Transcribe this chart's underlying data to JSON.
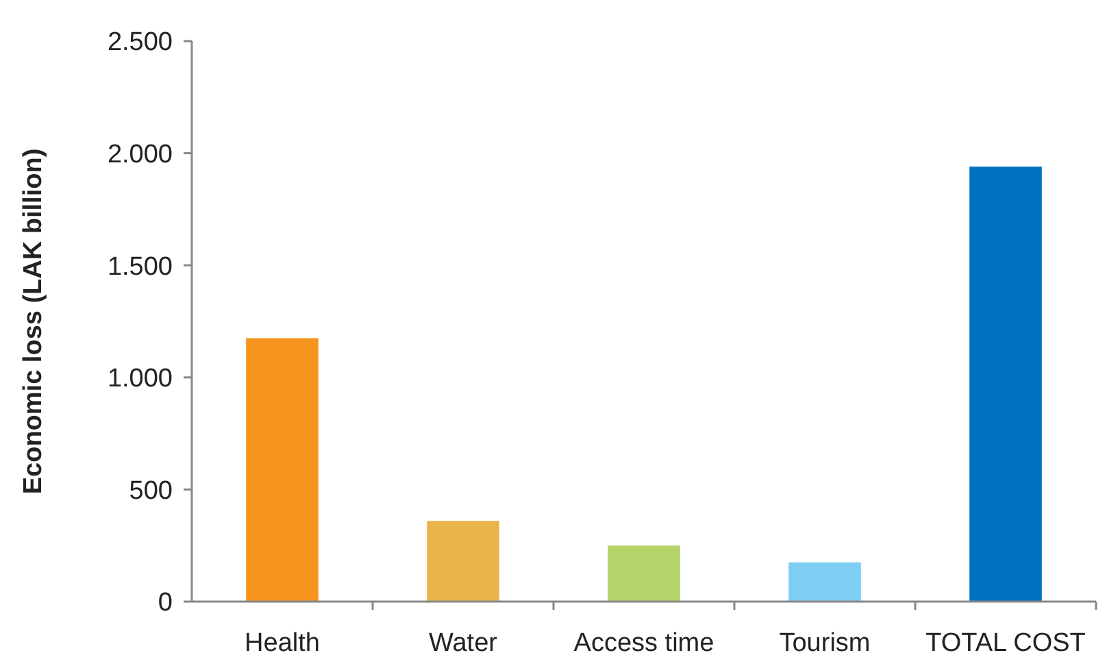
{
  "chart_data": {
    "type": "bar",
    "ylabel": "Economic loss (LAK billion)",
    "categories": [
      "Health",
      "Water",
      "Access time",
      "Tourism",
      "TOTAL COST"
    ],
    "values": [
      1175,
      360,
      250,
      175,
      1940
    ],
    "colors": [
      "#f7941d",
      "#e9b44c",
      "#b5d56a",
      "#7ecef4",
      "#0070c0"
    ],
    "ylim": [
      0,
      2500
    ],
    "yticks": [
      0,
      500,
      {
        "value": 1000,
        "label": "1.000"
      },
      {
        "value": 1500,
        "label": "1.500"
      },
      {
        "value": 2000,
        "label": "2.000"
      },
      {
        "value": 2500,
        "label": "2.500"
      }
    ],
    "grid": false
  }
}
